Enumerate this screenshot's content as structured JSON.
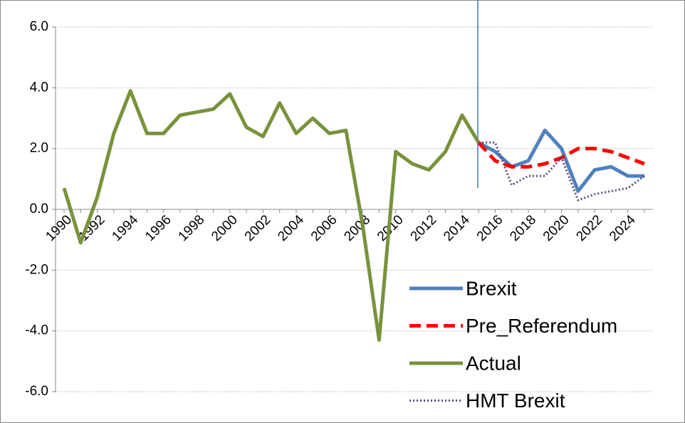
{
  "chart_data": {
    "type": "line",
    "categories": [
      "1990",
      null,
      "1992",
      null,
      "1994",
      null,
      "1996",
      null,
      "1998",
      null,
      "2000",
      null,
      "2002",
      null,
      "2004",
      null,
      "2006",
      null,
      "2008",
      null,
      "2010",
      null,
      "2012",
      null,
      "2014",
      null,
      "2016",
      null,
      "2018",
      null,
      "2020",
      null,
      "2022",
      null,
      "2024",
      null
    ],
    "series": [
      {
        "name": "Brexit",
        "color": "#4f81bd",
        "dash": "solid",
        "width": 5,
        "values": [
          null,
          null,
          null,
          null,
          null,
          null,
          null,
          null,
          null,
          null,
          null,
          null,
          null,
          null,
          null,
          null,
          null,
          null,
          null,
          null,
          null,
          null,
          null,
          null,
          null,
          2.2,
          1.9,
          1.4,
          1.6,
          2.6,
          2.0,
          0.6,
          1.3,
          1.4,
          1.1,
          1.1
        ]
      },
      {
        "name": "Pre_Referendum",
        "color": "#ff0000",
        "dash": "dashed",
        "width": 5,
        "values": [
          null,
          null,
          null,
          null,
          null,
          null,
          null,
          null,
          null,
          null,
          null,
          null,
          null,
          null,
          null,
          null,
          null,
          null,
          null,
          null,
          null,
          null,
          null,
          null,
          null,
          2.2,
          1.6,
          1.4,
          1.4,
          1.5,
          1.7,
          2.0,
          2.0,
          1.9,
          1.7,
          1.5
        ]
      },
      {
        "name": "Actual",
        "color": "#77933c",
        "dash": "solid",
        "width": 5,
        "values": [
          0.7,
          -1.1,
          0.4,
          2.5,
          3.9,
          2.5,
          2.5,
          3.1,
          3.2,
          3.3,
          3.8,
          2.7,
          2.4,
          3.5,
          2.5,
          3.0,
          2.5,
          2.6,
          -0.5,
          -4.3,
          1.9,
          1.5,
          1.3,
          1.9,
          3.1,
          2.2,
          null,
          null,
          null,
          null,
          null,
          null,
          null,
          null,
          null,
          null
        ]
      },
      {
        "name": "HMT Brexit",
        "color": "#604a7b",
        "dash": "dotted",
        "width": 3,
        "values": [
          null,
          null,
          null,
          null,
          null,
          null,
          null,
          null,
          null,
          null,
          null,
          null,
          null,
          null,
          null,
          null,
          null,
          null,
          null,
          null,
          null,
          null,
          null,
          null,
          null,
          2.2,
          2.2,
          0.8,
          1.1,
          1.1,
          1.7,
          0.3,
          0.5,
          0.6,
          0.7,
          1.1
        ]
      }
    ],
    "ylim": [
      -6,
      6
    ],
    "yticks": [
      {
        "value": -6,
        "label": "-6.0"
      },
      {
        "value": -4,
        "label": "-4.0"
      },
      {
        "value": -2,
        "label": "-2.0"
      },
      {
        "value": 0,
        "label": "0.0"
      },
      {
        "value": 2,
        "label": "2.0"
      },
      {
        "value": 4,
        "label": "4.0"
      },
      {
        "value": 6,
        "label": "6.0"
      }
    ],
    "grid": true,
    "legend": "lower right"
  }
}
